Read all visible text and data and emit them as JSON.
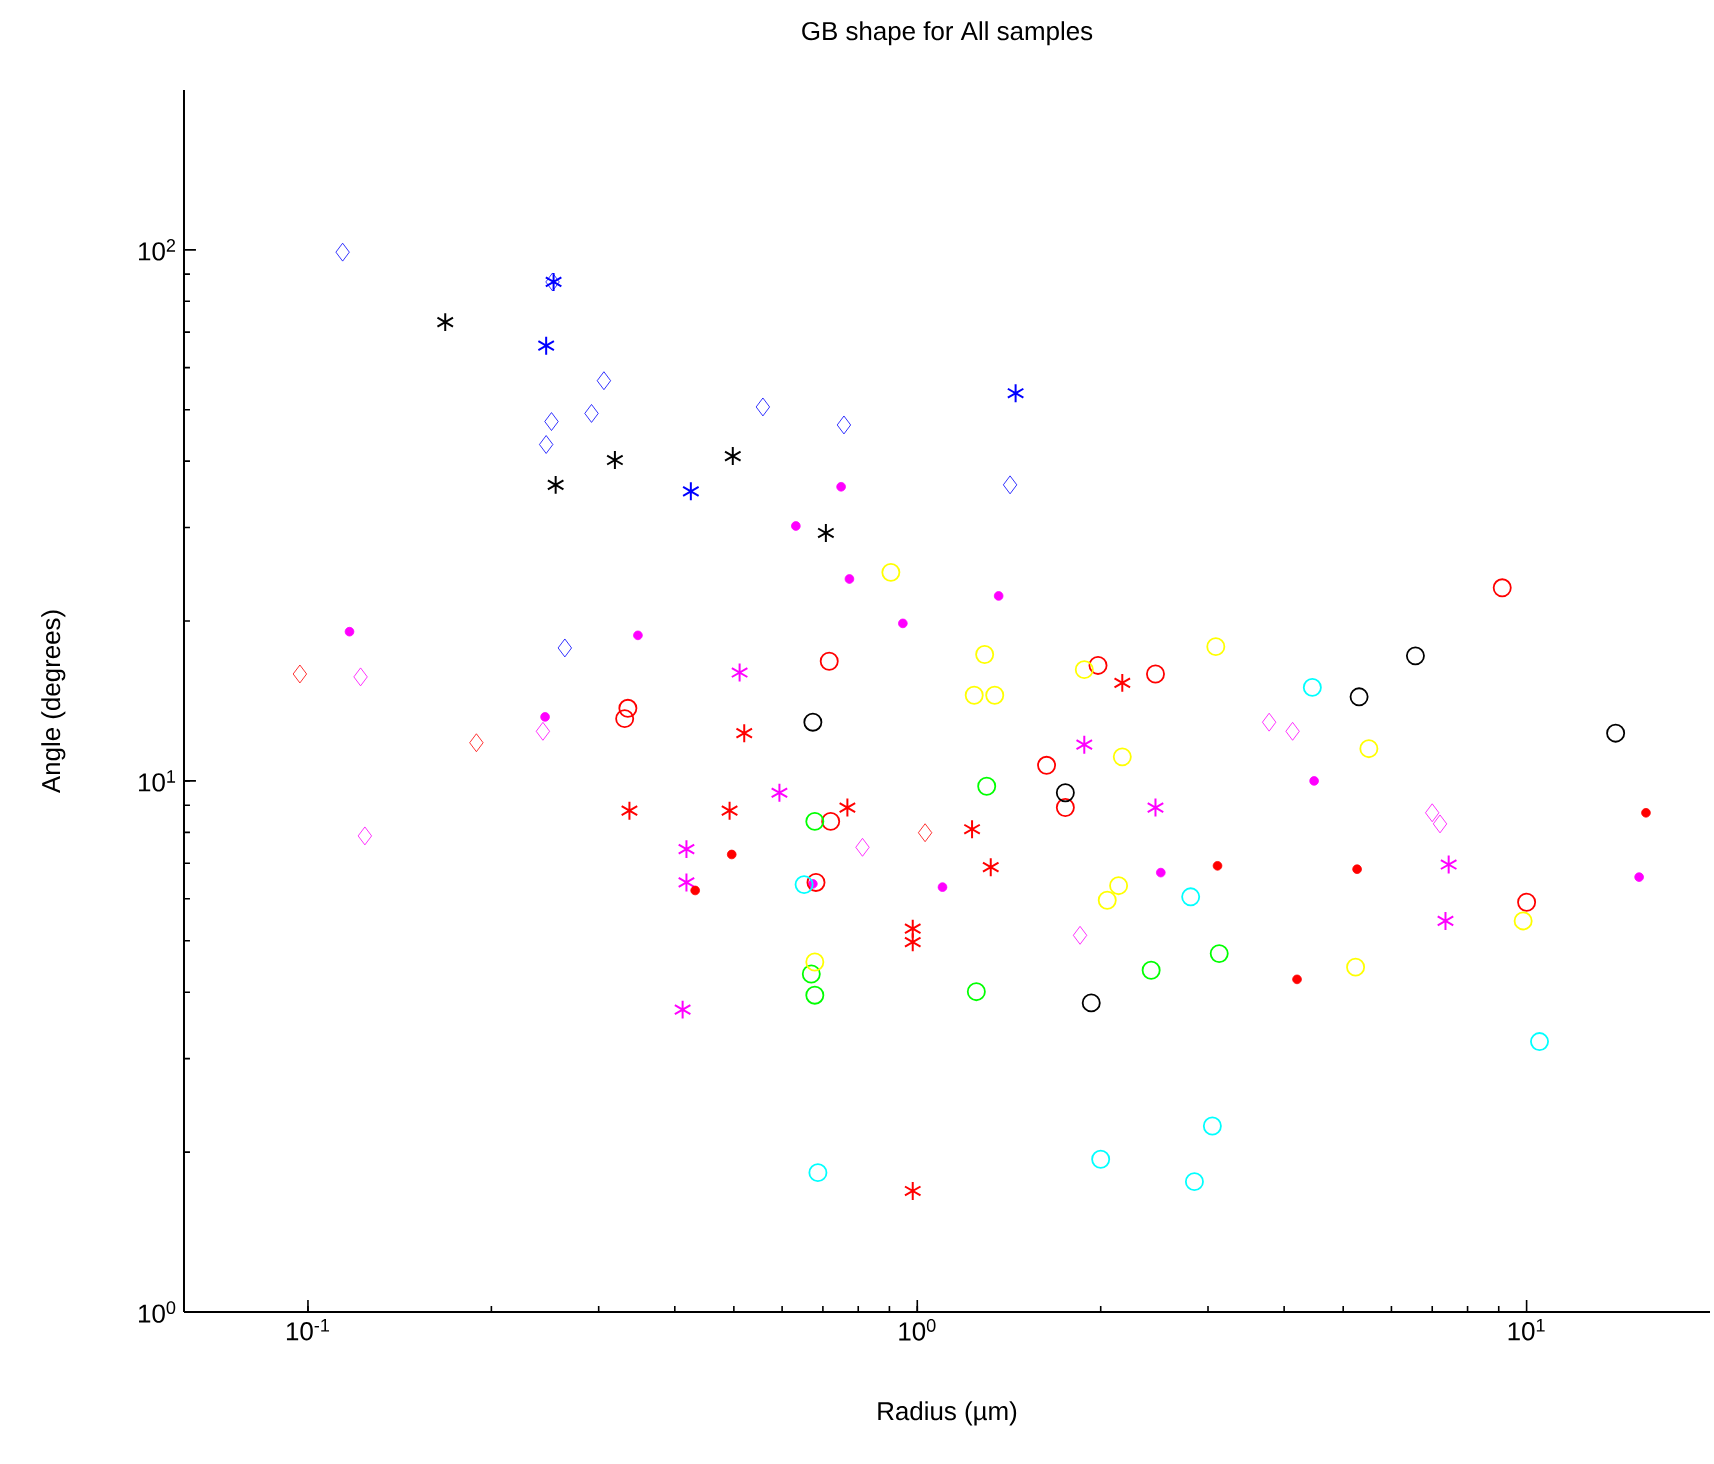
{
  "chart_data": {
    "type": "scatter",
    "title": "GB shape for All samples",
    "xlabel": "Radius (µm)",
    "ylabel": "Angle (degrees)",
    "log": "xy",
    "xlim": [
      0.0626,
      20
    ],
    "ylim": [
      1,
      200
    ],
    "xticks": [
      {
        "value": 0.1,
        "label": "10$^{-1}$"
      },
      {
        "value": 1,
        "label": "10$^{0}$"
      },
      {
        "value": 10,
        "label": "10$^{1}$"
      }
    ],
    "yticks": [
      {
        "value": 1,
        "label": "10$^{0}$"
      },
      {
        "value": 10,
        "label": "10$^{1}$"
      },
      {
        "value": 100,
        "label": "10$^{2}$"
      }
    ],
    "series": [
      {
        "color": "#0000ff",
        "marker": "diamond",
        "x": [
          0.114,
          0.252,
          0.306,
          0.292,
          0.251,
          0.246,
          0.558,
          0.758,
          1.42,
          0.264
        ],
        "values": [
          99,
          87,
          56.7,
          49.2,
          47.5,
          43.0,
          50.6,
          46.8,
          36.1,
          17.8
        ]
      },
      {
        "color": "#0000ff",
        "marker": "cross",
        "x": [
          0.253,
          0.246,
          0.425,
          1.45
        ],
        "values": [
          87,
          66,
          35.1,
          53.7
        ]
      },
      {
        "color": "#000000",
        "marker": "cross",
        "x": [
          0.168,
          0.319,
          0.255,
          0.498,
          0.708
        ],
        "values": [
          73.1,
          40.2,
          36.1,
          40.9,
          29.3
        ]
      },
      {
        "color": "#ff00ff",
        "marker": "dot",
        "x": [
          0.117,
          0.348,
          0.245,
          0.75,
          0.632,
          0.774,
          1.36,
          0.947,
          0.674,
          1.1,
          2.51,
          4.48,
          15.3
        ],
        "values": [
          19.1,
          18.8,
          13.2,
          35.8,
          30.2,
          24.0,
          22.3,
          19.8,
          6.4,
          6.31,
          6.72,
          10.0,
          6.59
        ]
      },
      {
        "color": "#ff0000",
        "marker": "diamond",
        "x": [
          0.097,
          0.189,
          1.03
        ],
        "values": [
          15.9,
          11.8,
          7.99
        ]
      },
      {
        "color": "#ff00ff",
        "marker": "diamond",
        "x": [
          0.122,
          0.243,
          0.124,
          0.813,
          1.85,
          3.78,
          4.13,
          7.0,
          7.21
        ],
        "values": [
          15.7,
          12.4,
          7.88,
          7.5,
          5.12,
          12.9,
          12.4,
          8.71,
          8.3
        ]
      },
      {
        "color": "#ff0000",
        "marker": "circle",
        "x": [
          0.335,
          0.331,
          0.717,
          1.98,
          2.46,
          1.63,
          1.75,
          0.721,
          0.682,
          9.12,
          10.0
        ],
        "values": [
          13.7,
          13.1,
          16.8,
          16.5,
          15.9,
          10.7,
          8.91,
          8.39,
          6.44,
          23.1,
          5.91
        ]
      },
      {
        "color": "#ff0000",
        "marker": "cross",
        "x": [
          0.337,
          0.52,
          0.492,
          0.768,
          1.23,
          1.32,
          0.983,
          0.983,
          2.17,
          0.983
        ],
        "values": [
          8.79,
          12.3,
          8.79,
          8.91,
          8.11,
          6.88,
          5.27,
          4.97,
          15.3,
          1.69
        ]
      },
      {
        "color": "#ff00ff",
        "marker": "cross",
        "x": [
          0.511,
          0.594,
          0.418,
          0.418,
          0.412,
          1.88,
          2.46,
          7.45,
          7.36
        ],
        "values": [
          16.0,
          9.5,
          7.44,
          6.44,
          3.71,
          11.7,
          8.91,
          6.96,
          5.45
        ]
      },
      {
        "color": "#ff0000",
        "marker": "dot",
        "x": [
          0.432,
          0.496,
          3.11,
          5.27,
          4.2,
          15.7
        ],
        "values": [
          6.22,
          7.27,
          6.92,
          6.82,
          4.23,
          8.71
        ]
      },
      {
        "color": "#00ff00",
        "marker": "circle",
        "x": [
          1.3,
          0.679,
          0.67,
          0.679,
          1.25,
          2.42,
          3.13
        ],
        "values": [
          9.77,
          8.39,
          4.33,
          3.95,
          4.01,
          4.4,
          4.73
        ]
      },
      {
        "color": "#ffff00",
        "marker": "circle",
        "x": [
          0.905,
          1.29,
          1.24,
          1.34,
          1.88,
          3.09,
          2.17,
          5.51,
          2.14,
          2.05,
          0.679,
          5.24,
          9.87
        ],
        "values": [
          24.7,
          17.3,
          14.5,
          14.5,
          16.2,
          17.9,
          11.1,
          11.5,
          6.35,
          5.96,
          4.56,
          4.46,
          5.45
        ]
      },
      {
        "color": "#00ffff",
        "marker": "circle",
        "x": [
          0.652,
          2.81,
          4.45,
          10.5,
          3.05,
          2.0,
          2.85,
          0.687
        ],
        "values": [
          6.38,
          6.05,
          15.0,
          3.23,
          2.24,
          1.94,
          1.76,
          1.83
        ]
      },
      {
        "color": "#000000",
        "marker": "circle",
        "x": [
          0.674,
          1.75,
          1.93,
          6.57,
          5.31,
          14.0
        ],
        "values": [
          12.9,
          9.5,
          3.82,
          17.2,
          14.4,
          12.3
        ]
      }
    ]
  }
}
